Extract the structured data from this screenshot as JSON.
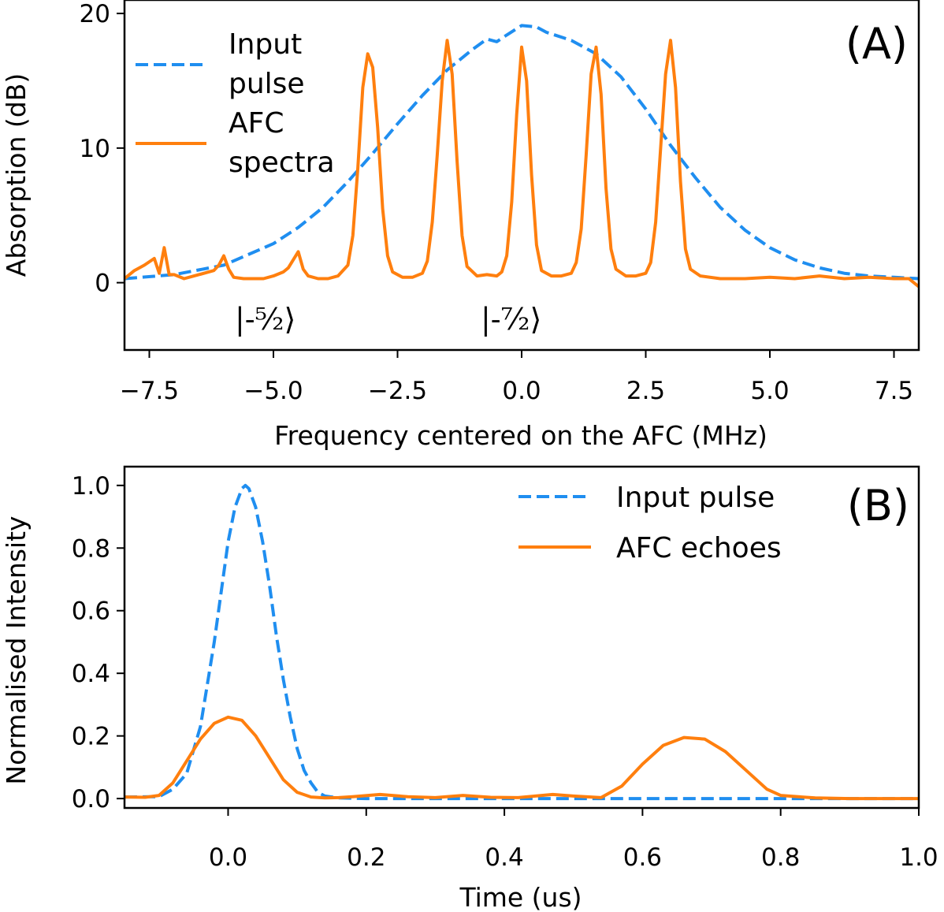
{
  "chart_data": [
    {
      "type": "line",
      "panel_label": "(A)",
      "xlabel": "Frequency centered on the AFC (MHz)",
      "ylabel": "Absorption (dB)",
      "xlim": [
        -8,
        8
      ],
      "ylim": [
        -5,
        21
      ],
      "xticks": [
        -7.5,
        -5.0,
        -2.5,
        0.0,
        2.5,
        5.0,
        7.5
      ],
      "xtick_labels": [
        "−7.5",
        "−5.0",
        "−2.5",
        "0.0",
        "2.5",
        "5.0",
        "7.5"
      ],
      "yticks": [
        0,
        10,
        20
      ],
      "ytick_labels": [
        "0",
        "10",
        "20"
      ],
      "grid": false,
      "legend_placement": "upper-left",
      "annotations": [
        {
          "text": "|-⁵⁄₂⟩",
          "x": -5.0,
          "y": -2.4
        },
        {
          "text": "|-⁷⁄₂⟩",
          "x": -0.2,
          "y": -2.4
        }
      ],
      "series": [
        {
          "name": "Input pulse",
          "style": "dashed",
          "color": "#1f8ef0",
          "x": [
            -8.0,
            -7.0,
            -6.0,
            -5.0,
            -4.5,
            -4.0,
            -3.5,
            -3.0,
            -2.5,
            -2.0,
            -1.5,
            -1.0,
            -0.7,
            -0.5,
            -0.3,
            0.0,
            0.3,
            0.5,
            1.0,
            1.5,
            2.0,
            2.5,
            3.0,
            3.5,
            4.0,
            4.5,
            5.0,
            5.5,
            6.0,
            6.5,
            7.0,
            7.5,
            8.0
          ],
          "y": [
            0.3,
            0.6,
            1.3,
            2.9,
            4.1,
            5.6,
            7.5,
            9.6,
            11.8,
            13.9,
            15.8,
            17.3,
            18.1,
            17.9,
            18.4,
            19.1,
            19.0,
            18.6,
            18.0,
            17.0,
            15.3,
            12.9,
            10.2,
            7.8,
            5.6,
            3.9,
            2.6,
            1.7,
            1.1,
            0.7,
            0.5,
            0.4,
            0.3
          ]
        },
        {
          "name": "AFC spectra",
          "style": "solid",
          "color": "#ff7f0e",
          "x": [
            -8.0,
            -7.8,
            -7.6,
            -7.4,
            -7.3,
            -7.2,
            -7.1,
            -7.0,
            -6.8,
            -6.6,
            -6.4,
            -6.2,
            -6.1,
            -6.0,
            -5.9,
            -5.8,
            -5.6,
            -5.4,
            -5.2,
            -5.0,
            -4.8,
            -4.7,
            -4.6,
            -4.5,
            -4.4,
            -4.3,
            -4.1,
            -3.9,
            -3.7,
            -3.5,
            -3.4,
            -3.3,
            -3.2,
            -3.1,
            -3.0,
            -2.9,
            -2.8,
            -2.7,
            -2.6,
            -2.4,
            -2.2,
            -2.0,
            -1.9,
            -1.8,
            -1.7,
            -1.6,
            -1.5,
            -1.4,
            -1.3,
            -1.2,
            -1.1,
            -0.9,
            -0.7,
            -0.5,
            -0.4,
            -0.3,
            -0.2,
            -0.1,
            0.0,
            0.1,
            0.2,
            0.3,
            0.4,
            0.6,
            0.8,
            1.0,
            1.1,
            1.2,
            1.3,
            1.4,
            1.5,
            1.6,
            1.7,
            1.8,
            1.9,
            2.1,
            2.3,
            2.5,
            2.6,
            2.7,
            2.8,
            2.9,
            3.0,
            3.1,
            3.2,
            3.3,
            3.4,
            3.6,
            4.0,
            4.5,
            5.0,
            5.5,
            6.0,
            6.5,
            7.0,
            7.5,
            7.8,
            8.0
          ],
          "y": [
            0.3,
            0.9,
            1.3,
            1.8,
            0.7,
            2.6,
            0.6,
            0.6,
            0.3,
            0.5,
            0.7,
            0.9,
            1.3,
            2.0,
            1.0,
            0.4,
            0.3,
            0.3,
            0.3,
            0.5,
            0.8,
            1.1,
            1.7,
            2.3,
            1.0,
            0.5,
            0.3,
            0.3,
            0.5,
            1.3,
            3.5,
            8.5,
            14.5,
            17.0,
            16.0,
            11.5,
            5.5,
            2.0,
            0.8,
            0.4,
            0.4,
            0.7,
            1.6,
            4.5,
            9.5,
            15.0,
            18.0,
            15.5,
            9.0,
            3.5,
            1.2,
            0.5,
            0.6,
            0.5,
            0.8,
            2.0,
            6.0,
            12.5,
            17.5,
            15.0,
            8.0,
            2.8,
            0.9,
            0.5,
            0.5,
            0.7,
            1.5,
            4.0,
            9.5,
            15.5,
            17.5,
            14.0,
            7.0,
            2.5,
            1.0,
            0.5,
            0.5,
            0.7,
            1.5,
            4.5,
            10.0,
            15.5,
            18.0,
            14.5,
            7.5,
            2.5,
            1.0,
            0.5,
            0.3,
            0.3,
            0.4,
            0.3,
            0.5,
            0.3,
            0.4,
            0.3,
            0.3,
            -0.3
          ]
        }
      ]
    },
    {
      "type": "line",
      "panel_label": "(B)",
      "xlabel": "Time (us)",
      "ylabel": "Normalised Intensity",
      "xlim": [
        -0.15,
        1.0
      ],
      "ylim": [
        -0.03,
        1.06
      ],
      "xticks": [
        0.0,
        0.2,
        0.4,
        0.6,
        0.8,
        1.0
      ],
      "xtick_labels": [
        "0.0",
        "0.2",
        "0.4",
        "0.6",
        "0.8",
        "1.0"
      ],
      "yticks": [
        0.0,
        0.2,
        0.4,
        0.6,
        0.8,
        1.0
      ],
      "ytick_labels": [
        "0.0",
        "0.2",
        "0.4",
        "0.6",
        "0.8",
        "1.0"
      ],
      "grid": false,
      "legend_placement": "upper-right",
      "series": [
        {
          "name": "Input pulse",
          "style": "dashed",
          "color": "#1f8ef0",
          "x": [
            -0.15,
            -0.1,
            -0.08,
            -0.06,
            -0.04,
            -0.02,
            0.0,
            0.01,
            0.02,
            0.025,
            0.03,
            0.04,
            0.05,
            0.06,
            0.07,
            0.08,
            0.09,
            0.1,
            0.11,
            0.12,
            0.13,
            0.14,
            0.16,
            0.2,
            0.4,
            0.6,
            0.8,
            1.0
          ],
          "y": [
            0.005,
            0.006,
            0.03,
            0.08,
            0.23,
            0.5,
            0.82,
            0.93,
            0.99,
            1.0,
            0.99,
            0.93,
            0.82,
            0.68,
            0.52,
            0.38,
            0.26,
            0.16,
            0.09,
            0.05,
            0.02,
            0.008,
            0.002,
            0.0,
            0.0,
            0.0,
            0.0,
            0.0
          ]
        },
        {
          "name": "AFC echoes",
          "style": "solid",
          "color": "#ff7f0e",
          "x": [
            -0.15,
            -0.12,
            -0.1,
            -0.08,
            -0.06,
            -0.04,
            -0.02,
            0.0,
            0.02,
            0.04,
            0.06,
            0.08,
            0.1,
            0.12,
            0.14,
            0.16,
            0.18,
            0.22,
            0.26,
            0.3,
            0.34,
            0.38,
            0.42,
            0.47,
            0.5,
            0.54,
            0.57,
            0.6,
            0.63,
            0.66,
            0.69,
            0.72,
            0.75,
            0.78,
            0.8,
            0.85,
            0.9,
            1.0
          ],
          "y": [
            0.005,
            0.004,
            0.01,
            0.05,
            0.12,
            0.19,
            0.24,
            0.26,
            0.25,
            0.2,
            0.13,
            0.06,
            0.02,
            0.005,
            0.002,
            0.003,
            0.006,
            0.013,
            0.006,
            0.003,
            0.01,
            0.004,
            0.003,
            0.013,
            0.008,
            0.003,
            0.04,
            0.11,
            0.17,
            0.195,
            0.19,
            0.15,
            0.09,
            0.03,
            0.01,
            0.002,
            0.0,
            0.0
          ]
        }
      ]
    }
  ]
}
